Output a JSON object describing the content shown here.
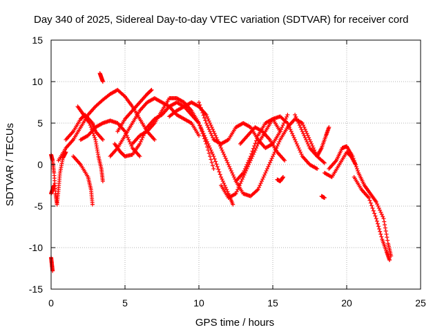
{
  "chart_data": {
    "type": "scatter",
    "title": "Day 340 of 2025, Sidereal Day-to-day VTEC variation (SDTVAR) for receiver cord",
    "xlabel": "GPS time / hours",
    "ylabel": "SDTVAR / TECUs",
    "xlim": [
      0,
      25
    ],
    "ylim": [
      -15,
      15
    ],
    "xticks": [
      0,
      5,
      10,
      15,
      20,
      25
    ],
    "yticks": [
      -15,
      -10,
      -5,
      0,
      5,
      10,
      15
    ],
    "grid": true,
    "marker": "+",
    "color": "#ff0000",
    "tracks": [
      {
        "name": "track-1",
        "points": [
          [
            0.0,
            1.2
          ],
          [
            0.1,
            0.5
          ],
          [
            0.2,
            -1.0
          ],
          [
            0.3,
            -3.5
          ],
          [
            0.4,
            -4.8
          ],
          [
            0.5,
            -3.0
          ],
          [
            0.6,
            -1.0
          ],
          [
            0.8,
            0.8
          ],
          [
            1.0,
            1.5
          ]
        ]
      },
      {
        "name": "track-2",
        "points": [
          [
            0.0,
            -11.2
          ],
          [
            0.05,
            -12.0
          ],
          [
            0.1,
            -12.8
          ]
        ]
      },
      {
        "name": "track-3",
        "points": [
          [
            0.0,
            -3.5
          ],
          [
            0.1,
            -3.0
          ],
          [
            0.2,
            -2.5
          ]
        ]
      },
      {
        "name": "track-4",
        "points": [
          [
            0.5,
            0.5
          ],
          [
            1.0,
            2.0
          ],
          [
            1.5,
            3.0
          ],
          [
            2.0,
            4.5
          ],
          [
            2.5,
            6.0
          ],
          [
            3.0,
            7.0
          ],
          [
            3.5,
            7.8
          ],
          [
            4.0,
            8.5
          ],
          [
            4.5,
            9.0
          ],
          [
            5.0,
            8.2
          ],
          [
            5.5,
            7.0
          ],
          [
            6.0,
            5.5
          ],
          [
            6.5,
            4.0
          ],
          [
            7.0,
            3.0
          ]
        ]
      },
      {
        "name": "track-5",
        "points": [
          [
            1.5,
            1.0
          ],
          [
            2.0,
            0.0
          ],
          [
            2.5,
            -1.5
          ],
          [
            2.7,
            -3.0
          ],
          [
            2.8,
            -4.8
          ]
        ]
      },
      {
        "name": "track-6",
        "points": [
          [
            3.3,
            11.0
          ],
          [
            3.4,
            10.5
          ],
          [
            3.5,
            10.0
          ]
        ]
      },
      {
        "name": "track-7",
        "points": [
          [
            1.0,
            3.0
          ],
          [
            1.5,
            4.0
          ],
          [
            2.0,
            5.5
          ],
          [
            2.3,
            6.0
          ],
          [
            2.8,
            5.0
          ],
          [
            3.0,
            4.0
          ],
          [
            3.5,
            3.0
          ]
        ]
      },
      {
        "name": "track-8",
        "points": [
          [
            1.8,
            7.0
          ],
          [
            2.2,
            6.0
          ],
          [
            2.6,
            5.0
          ],
          [
            3.0,
            3.0
          ],
          [
            3.2,
            1.0
          ],
          [
            3.4,
            -0.5
          ],
          [
            3.5,
            -2.0
          ]
        ]
      },
      {
        "name": "track-9",
        "points": [
          [
            2.0,
            3.0
          ],
          [
            2.5,
            3.5
          ],
          [
            3.0,
            4.5
          ],
          [
            3.5,
            5.0
          ],
          [
            4.0,
            5.3
          ],
          [
            4.5,
            5.0
          ],
          [
            5.0,
            4.0
          ],
          [
            5.5,
            2.0
          ],
          [
            6.0,
            1.0
          ]
        ]
      },
      {
        "name": "track-10",
        "points": [
          [
            4.0,
            1.0
          ],
          [
            4.5,
            2.0
          ],
          [
            5.0,
            3.5
          ],
          [
            5.5,
            5.0
          ],
          [
            6.0,
            6.5
          ],
          [
            6.5,
            7.5
          ],
          [
            7.0,
            8.0
          ],
          [
            7.5,
            7.5
          ],
          [
            8.0,
            7.0
          ],
          [
            8.5,
            6.0
          ],
          [
            9.0,
            5.5
          ],
          [
            9.5,
            5.0
          ],
          [
            10.0,
            3.5
          ]
        ]
      },
      {
        "name": "track-11",
        "points": [
          [
            4.5,
            4.0
          ],
          [
            5.0,
            5.5
          ],
          [
            5.5,
            6.5
          ],
          [
            6.0,
            7.5
          ],
          [
            6.5,
            8.5
          ],
          [
            6.8,
            9.0
          ]
        ]
      },
      {
        "name": "track-12",
        "points": [
          [
            4.3,
            2.5
          ],
          [
            4.7,
            1.5
          ],
          [
            5.0,
            1.0
          ],
          [
            5.5,
            1.2
          ],
          [
            6.0,
            2.5
          ],
          [
            6.5,
            4.5
          ],
          [
            7.0,
            5.5
          ],
          [
            7.5,
            6.0
          ],
          [
            8.0,
            7.0
          ],
          [
            8.5,
            7.5
          ],
          [
            9.0,
            7.0
          ],
          [
            9.5,
            6.0
          ],
          [
            10.0,
            5.0
          ],
          [
            10.5,
            3.0
          ],
          [
            11.0,
            1.0
          ],
          [
            11.5,
            -1.5
          ],
          [
            12.0,
            -3.5
          ],
          [
            12.3,
            -4.8
          ]
        ]
      },
      {
        "name": "track-13",
        "points": [
          [
            5.5,
            2.5
          ],
          [
            6.0,
            3.5
          ],
          [
            6.5,
            4.0
          ],
          [
            7.0,
            5.0
          ],
          [
            7.5,
            6.5
          ],
          [
            8.0,
            8.0
          ],
          [
            8.5,
            8.0
          ],
          [
            9.0,
            7.5
          ],
          [
            9.5,
            6.5
          ],
          [
            10.0,
            5.0
          ],
          [
            10.5,
            2.5
          ],
          [
            11.0,
            -0.5
          ]
        ]
      },
      {
        "name": "track-14",
        "points": [
          [
            8.0,
            5.8
          ],
          [
            8.5,
            6.5
          ],
          [
            9.0,
            7.0
          ],
          [
            9.5,
            7.5
          ],
          [
            10.0,
            7.0
          ],
          [
            10.5,
            6.0
          ],
          [
            11.0,
            4.0
          ],
          [
            11.5,
            2.0
          ],
          [
            12.0,
            0.0
          ],
          [
            12.5,
            -2.0
          ],
          [
            13.0,
            -3.5
          ],
          [
            13.5,
            -3.8
          ],
          [
            14.0,
            -3.0
          ],
          [
            14.5,
            -1.0
          ],
          [
            15.0,
            1.0
          ],
          [
            15.5,
            3.0
          ],
          [
            16.0,
            4.5
          ],
          [
            16.5,
            5.5
          ],
          [
            17.0,
            5.0
          ],
          [
            17.5,
            3.0
          ],
          [
            18.0,
            1.0
          ],
          [
            18.5,
            0.2
          ]
        ]
      },
      {
        "name": "track-15",
        "points": [
          [
            10.0,
            7.5
          ],
          [
            10.5,
            5.0
          ],
          [
            11.0,
            3.0
          ],
          [
            11.5,
            2.5
          ],
          [
            12.0,
            3.0
          ],
          [
            12.5,
            4.5
          ],
          [
            13.0,
            5.0
          ],
          [
            13.5,
            4.5
          ],
          [
            14.0,
            3.0
          ],
          [
            14.5,
            2.0
          ],
          [
            15.0,
            2.5
          ],
          [
            15.5,
            4.0
          ],
          [
            16.0,
            6.0
          ]
        ]
      },
      {
        "name": "track-16",
        "points": [
          [
            11.5,
            -2.5
          ],
          [
            12.0,
            -4.0
          ],
          [
            12.5,
            -3.5
          ],
          [
            13.0,
            -1.5
          ],
          [
            13.5,
            0.5
          ],
          [
            14.0,
            2.5
          ],
          [
            14.5,
            4.0
          ],
          [
            15.0,
            5.5
          ],
          [
            15.5,
            5.8
          ],
          [
            16.0,
            5.0
          ],
          [
            16.5,
            3.0
          ],
          [
            17.0,
            1.0
          ],
          [
            17.5,
            0.0
          ],
          [
            18.0,
            -0.5
          ]
        ]
      },
      {
        "name": "track-17",
        "points": [
          [
            12.5,
            -2.0
          ],
          [
            13.0,
            -1.0
          ],
          [
            13.5,
            1.0
          ],
          [
            14.0,
            3.5
          ],
          [
            14.5,
            5.0
          ],
          [
            15.0,
            5.5
          ],
          [
            15.5,
            4.0
          ]
        ]
      },
      {
        "name": "track-18",
        "points": [
          [
            12.8,
            2.5
          ],
          [
            13.3,
            3.5
          ],
          [
            13.8,
            4.5
          ],
          [
            14.3,
            4.0
          ],
          [
            14.8,
            3.0
          ],
          [
            15.3,
            1.5
          ],
          [
            15.8,
            0.5
          ]
        ]
      },
      {
        "name": "track-19",
        "points": [
          [
            15.3,
            -1.8
          ],
          [
            15.5,
            -2.0
          ],
          [
            15.7,
            -1.5
          ]
        ]
      },
      {
        "name": "track-20",
        "points": [
          [
            16.5,
            6.0
          ],
          [
            17.0,
            4.0
          ],
          [
            17.5,
            2.0
          ],
          [
            18.0,
            1.0
          ],
          [
            18.3,
            2.0
          ],
          [
            18.6,
            3.5
          ],
          [
            18.8,
            4.5
          ]
        ]
      },
      {
        "name": "track-21",
        "points": [
          [
            18.3,
            -3.8
          ],
          [
            18.5,
            -4.0
          ]
        ]
      },
      {
        "name": "track-22",
        "points": [
          [
            18.5,
            -1.0
          ],
          [
            19.0,
            -1.5
          ],
          [
            19.5,
            0.0
          ],
          [
            20.0,
            1.5
          ],
          [
            20.3,
            1.0
          ],
          [
            20.6,
            0.0
          ]
        ]
      },
      {
        "name": "track-23",
        "points": [
          [
            18.8,
            -0.5
          ],
          [
            19.3,
            0.5
          ],
          [
            19.7,
            2.0
          ],
          [
            20.0,
            2.2
          ],
          [
            20.4,
            1.0
          ],
          [
            20.8,
            -1.0
          ],
          [
            21.2,
            -2.5
          ],
          [
            21.6,
            -3.5
          ],
          [
            22.0,
            -4.5
          ],
          [
            22.5,
            -6.5
          ],
          [
            22.8,
            -9.5
          ],
          [
            23.0,
            -11.0
          ]
        ]
      },
      {
        "name": "track-24",
        "points": [
          [
            20.5,
            -1.5
          ],
          [
            21.0,
            -3.0
          ],
          [
            21.5,
            -4.0
          ],
          [
            22.0,
            -6.5
          ],
          [
            22.4,
            -9.0
          ],
          [
            22.7,
            -10.5
          ],
          [
            22.9,
            -11.5
          ]
        ]
      }
    ]
  }
}
